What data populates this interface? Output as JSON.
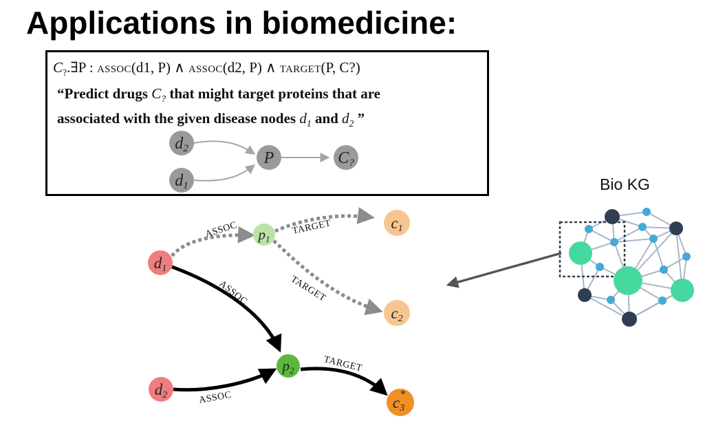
{
  "slide": {
    "title": "Applications in biomedicine:"
  },
  "query": {
    "formula_prefix": "C",
    "formula_sub": "?",
    "formula_rest": ".∃P : ",
    "assoc_word": "assoc",
    "target_word": "target",
    "formula_args_1": "(d1, P) ∧ ",
    "formula_args_2": "(d2, P) ∧ ",
    "formula_args_3": "(P, C?)",
    "quote_line1_a": "“Predict drugs ",
    "quote_line1_b": " that might target proteins that are",
    "quote_line2_a": "associated with the given disease nodes ",
    "quote_line2_b": " and ",
    "quote_line2_c": " ”"
  },
  "query_graph": {
    "nodes": [
      {
        "id": "d2",
        "label": "d",
        "sub": "2"
      },
      {
        "id": "d1",
        "label": "d",
        "sub": "1"
      },
      {
        "id": "P",
        "label": "P",
        "sub": ""
      },
      {
        "id": "C",
        "label": "C",
        "sub": "?"
      }
    ]
  },
  "reasoning_graph": {
    "nodes": [
      {
        "id": "d1",
        "label": "d",
        "sub": "1",
        "color": "#f07d7d"
      },
      {
        "id": "d2",
        "label": "d",
        "sub": "2",
        "color": "#f07d7d"
      },
      {
        "id": "p1",
        "label": "p",
        "sub": "1",
        "color": "#b9e3a6"
      },
      {
        "id": "p2",
        "label": "p",
        "sub": "2",
        "color": "#5cb83c"
      },
      {
        "id": "c1",
        "label": "c",
        "sub": "1",
        "color": "#f7c690"
      },
      {
        "id": "c2",
        "label": "c",
        "sub": "2",
        "color": "#f7c690"
      },
      {
        "id": "c3",
        "label": "c",
        "sub": "3",
        "sup": "*",
        "color": "#ef8f24"
      }
    ],
    "edge_labels": {
      "d1_p1": "ASSOC",
      "p1_c1": "TARGET",
      "p1_c2": "TARGET",
      "d1_p2": "ASSOC",
      "d2_p2": "ASSOC",
      "p2_c3": "TARGET"
    }
  },
  "bio_kg": {
    "label": "Bio KG",
    "colors": {
      "dark": "#2f3e52",
      "blue": "#46a9d6",
      "green": "#45d9a0",
      "edge": "#a9b6c6"
    }
  }
}
